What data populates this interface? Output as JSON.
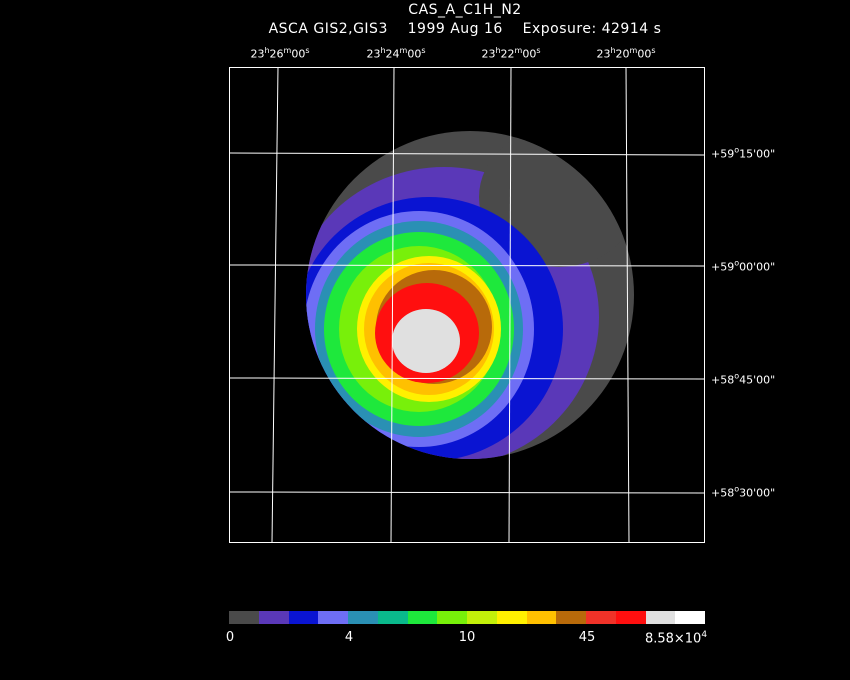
{
  "header": {
    "object_name": "CAS_A_C1H_N2",
    "subtitle": "ASCA GIS2,GIS3    1999 Aug 16    Exposure: 42914 s"
  },
  "ra_axis": {
    "labels": [
      {
        "h": "23",
        "m": "26",
        "s": "00"
      },
      {
        "h": "23",
        "m": "24",
        "s": "00"
      },
      {
        "h": "23",
        "m": "22",
        "s": "00"
      },
      {
        "h": "23",
        "m": "20",
        "s": "00"
      }
    ]
  },
  "dec_axis": {
    "labels": [
      {
        "sign": "+",
        "d": "59",
        "m": "15",
        "s": "00"
      },
      {
        "sign": "+",
        "d": "59",
        "m": "00",
        "s": "00"
      },
      {
        "sign": "+",
        "d": "58",
        "m": "45",
        "s": "00"
      },
      {
        "sign": "+",
        "d": "58",
        "m": "30",
        "s": "00"
      }
    ]
  },
  "colorbar": {
    "colors": [
      "#4a4a4a",
      "#5a38b8",
      "#0a14d2",
      "#6e6ef5",
      "#2a90b4",
      "#0ab98c",
      "#1ee83c",
      "#78f00a",
      "#c3f00a",
      "#fff000",
      "#ffc000",
      "#b86a0a",
      "#f03228",
      "#ff0f0f",
      "#e0e0e0",
      "#ffffff"
    ],
    "labels": [
      {
        "text": "0"
      },
      {
        "text": "4"
      },
      {
        "text": "10"
      },
      {
        "text": "45"
      },
      {
        "base": "8.58×10",
        "exp": "4"
      }
    ]
  },
  "image_colors": {
    "outer_dark": "#4a4a4a",
    "purple": "#5a38b8",
    "blue": "#0a14d2",
    "light_blue": "#6e6ef5",
    "teal": "#2a90b4",
    "green": "#1ee83c",
    "lime": "#78f00a",
    "yellow": "#fff000",
    "orange": "#ffc000",
    "brown": "#b86a0a",
    "red": "#ff0f0f",
    "core": "#e0e0e0",
    "grid": "#ffffff"
  }
}
